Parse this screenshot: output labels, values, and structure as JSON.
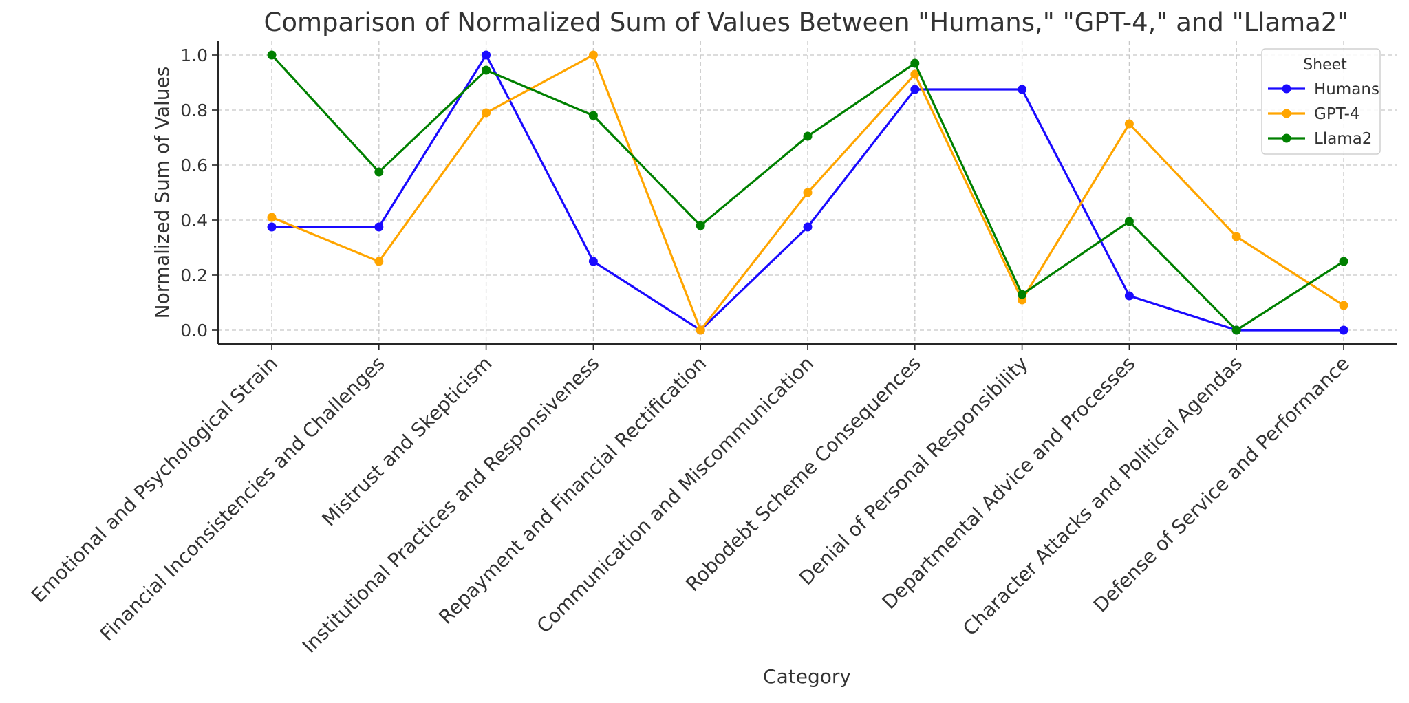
{
  "chart_data": {
    "type": "line",
    "title": "Comparison of Normalized Sum of Values Between \"Humans,\" \"GPT-4,\" and \"Llama2\"",
    "xlabel": "Category",
    "ylabel": "Normalized Sum of Values",
    "ylim": [
      -0.05,
      1.05
    ],
    "yticks": [
      0.0,
      0.2,
      0.4,
      0.6,
      0.8,
      1.0
    ],
    "ytick_labels": [
      "0.0",
      "0.2",
      "0.4",
      "0.6",
      "0.8",
      "1.0"
    ],
    "grid": true,
    "legend": {
      "title": "Sheet",
      "placement": "top-right"
    },
    "categories": [
      "Emotional and Psychological Strain",
      "Financial Inconsistencies and Challenges",
      "Mistrust and Skepticism",
      "Institutional Practices and Responsiveness",
      "Repayment and Financial Rectification",
      "Communication and Miscommunication",
      "Robodebt Scheme Consequences",
      "Denial of Personal Responsibility",
      "Departmental Advice and Processes",
      "Character Attacks and Political Agendas",
      "Defense of Service and Performance"
    ],
    "series": [
      {
        "name": "Humans",
        "color": "#1a0aff",
        "values": [
          0.375,
          0.375,
          1.0,
          0.25,
          0.0,
          0.375,
          0.875,
          0.875,
          0.125,
          0.0,
          0.0
        ]
      },
      {
        "name": "GPT-4",
        "color": "#ffa500",
        "values": [
          0.41,
          0.25,
          0.79,
          1.0,
          0.0,
          0.5,
          0.93,
          0.11,
          0.75,
          0.34,
          0.09
        ]
      },
      {
        "name": "Llama2",
        "color": "#008000",
        "values": [
          1.0,
          0.575,
          0.945,
          0.78,
          0.38,
          0.705,
          0.97,
          0.13,
          0.395,
          0.0,
          0.25
        ]
      }
    ]
  }
}
